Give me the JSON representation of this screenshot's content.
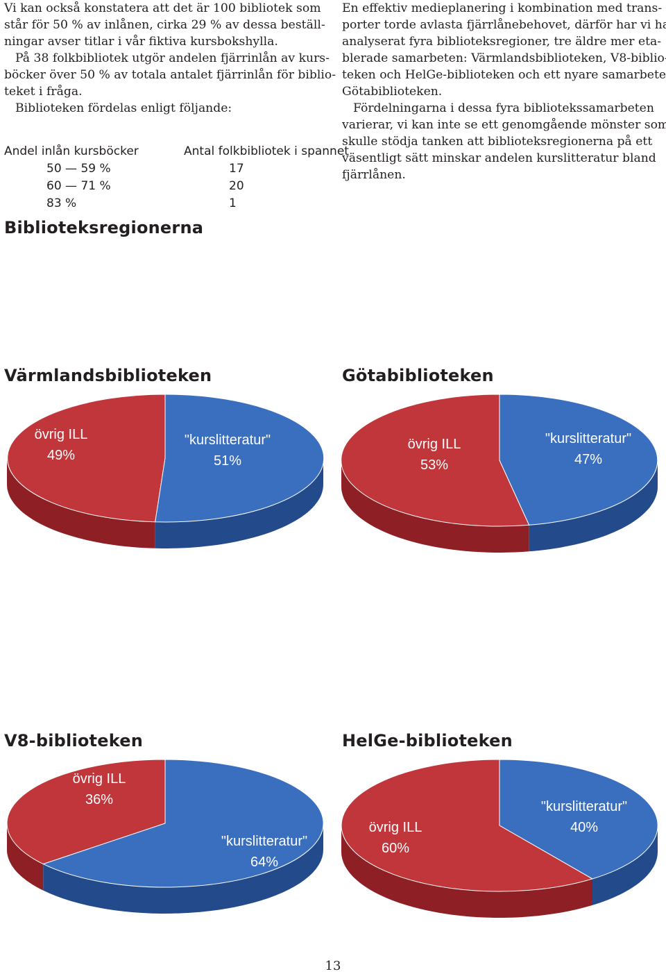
{
  "left_text": {
    "p1_lines": [
      "Vi kan också konstatera att det är 100 bibliotek som",
      "står för 50 % av inlånen, cirka 29 % av dessa beställ-",
      "ningar avser titlar i vår fiktiva kursbokshylla."
    ],
    "p2_lines": [
      "På 38 folkbibliotek utgör andelen fjärrinlån av kurs-",
      "böcker över 50 % av totala antalet fjärrinlån för biblio-",
      "teket i fråga."
    ],
    "p3_lines": [
      "Biblioteken fördelas enligt följande:"
    ]
  },
  "table": {
    "header_left": "Andel inlån kursböcker",
    "header_right": "Antal folkbibliotek i spannet",
    "rows": [
      {
        "range": "50 — 59 %",
        "count": "17"
      },
      {
        "range": "60 — 71 %",
        "count": "20"
      },
      {
        "range": "83 %",
        "count": "1"
      }
    ]
  },
  "section_heading": "Biblioteksregionerna",
  "right_text": {
    "p1_lines": [
      "En effektiv medieplanering i kombination med trans-",
      "porter torde avlasta fjärrlånebehovet, därför har vi har",
      "analyserat fyra biblioteksregioner, tre äldre mer eta-",
      "blerade samarbeten: Värmlandsbiblioteken, V8-biblio-",
      "teken och HelGe-biblioteken och ett nyare samarbete,",
      "Götabiblioteken."
    ],
    "p2_lines": [
      "Fördelningarna i dessa fyra bibliotekssamarbeten",
      "varierar, vi kan inte se ett genomgående mönster som",
      "skulle stödja tanken att biblioteksregionerna på ett",
      "väsentligt sätt minskar andelen kurslitteratur bland",
      "fjärrlånen."
    ]
  },
  "colors": {
    "red": "#c0363a",
    "red_dark": "#8e1f24",
    "blue": "#3a6fc0",
    "blue_dark": "#234a8a"
  },
  "chart_data": [
    {
      "type": "pie",
      "title": "Värmlandsbiblioteken",
      "labels": [
        "övrig ILL",
        "\"kurslitteratur\""
      ],
      "values": [
        49,
        51
      ],
      "value_labels": [
        "49%",
        "51%"
      ]
    },
    {
      "type": "pie",
      "title": "Götabiblioteken",
      "labels": [
        "övrig ILL",
        "\"kurslitteratur\""
      ],
      "values": [
        53,
        47
      ],
      "value_labels": [
        "53%",
        "47%"
      ]
    },
    {
      "type": "pie",
      "title": "V8-biblioteken",
      "labels": [
        "övrig ILL",
        "\"kurslitteratur\""
      ],
      "values": [
        36,
        64
      ],
      "value_labels": [
        "36%",
        "64%"
      ]
    },
    {
      "type": "pie",
      "title": "HelGe-biblioteken",
      "labels": [
        "övrig ILL",
        "\"kurslitteratur\""
      ],
      "values": [
        60,
        40
      ],
      "value_labels": [
        "60%",
        "40%"
      ]
    }
  ],
  "page_number": "13"
}
